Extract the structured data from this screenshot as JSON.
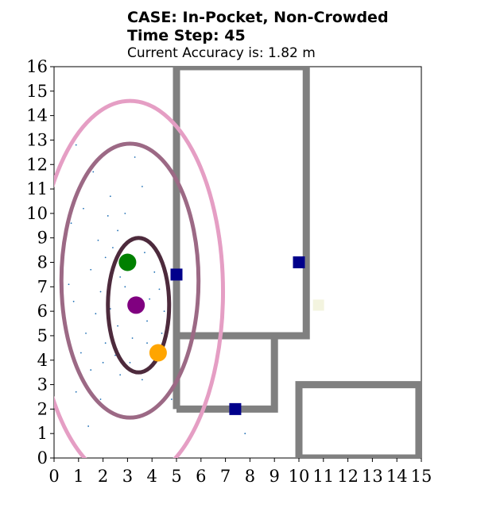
{
  "header": {
    "case_line": "CASE: In-Pocket, Non-Crowded",
    "time_line": "Time Step: 45",
    "accuracy_line": "Current Accuracy is: 1.82 m"
  },
  "chart_data": {
    "type": "scatter",
    "title": "CASE: In-Pocket, Non-Crowded",
    "xlabel": "",
    "ylabel": "",
    "xlim": [
      0,
      15
    ],
    "ylim": [
      0,
      16
    ],
    "xticks": [
      0,
      1,
      2,
      3,
      4,
      5,
      6,
      7,
      8,
      9,
      10,
      11,
      12,
      13,
      14,
      15
    ],
    "yticks": [
      0,
      1,
      2,
      3,
      4,
      5,
      6,
      7,
      8,
      9,
      10,
      11,
      12,
      13,
      14,
      15,
      16
    ],
    "grid": false,
    "legend": "none",
    "walls": {
      "color": "#808080",
      "polylines": [
        [
          [
            5.0,
            2.0
          ],
          [
            5.0,
            16.0
          ],
          [
            10.3,
            16.0
          ],
          [
            10.3,
            5.0
          ],
          [
            5.0,
            5.0
          ]
        ],
        [
          [
            5.0,
            5.0
          ],
          [
            9.0,
            5.0
          ],
          [
            9.0,
            2.0
          ],
          [
            5.0,
            2.0
          ]
        ],
        [
          [
            10.0,
            0.0
          ],
          [
            10.0,
            3.0
          ],
          [
            14.9,
            3.0
          ],
          [
            14.9,
            0.0
          ],
          [
            10.0,
            0.0
          ]
        ]
      ]
    },
    "ellipses": [
      {
        "cx": 3.1,
        "cy": 6.8,
        "rx": 3.8,
        "ry": 7.8,
        "color": "#e59ec4"
      },
      {
        "cx": 3.1,
        "cy": 7.25,
        "rx": 2.8,
        "ry": 5.6,
        "color": "#9c6985"
      },
      {
        "cx": 3.45,
        "cy": 6.25,
        "rx": 1.25,
        "ry": 2.75,
        "color": "#4d2a3c"
      }
    ],
    "anchors": {
      "color": "#00008b",
      "points": [
        [
          5.0,
          7.5
        ],
        [
          10.0,
          8.0
        ],
        [
          7.4,
          2.0
        ]
      ]
    },
    "markers": [
      {
        "x": 3.0,
        "y": 8.0,
        "color": "#008000"
      },
      {
        "x": 3.35,
        "y": 6.25,
        "color": "#800080"
      },
      {
        "x": 4.25,
        "y": 4.3,
        "color": "#ffa500"
      }
    ],
    "light_square": {
      "x": 10.8,
      "y": 6.25,
      "color": "#f3f4df"
    },
    "particles": {
      "color": "#1f6fb4",
      "points": [
        [
          0.9,
          12.8
        ],
        [
          1.6,
          11.7
        ],
        [
          1.2,
          10.2
        ],
        [
          2.3,
          10.7
        ],
        [
          0.7,
          9.6
        ],
        [
          2.6,
          9.3
        ],
        [
          1.8,
          8.9
        ],
        [
          2.1,
          8.2
        ],
        [
          0.4,
          8.3
        ],
        [
          1.5,
          7.7
        ],
        [
          2.7,
          7.4
        ],
        [
          2.9,
          7.0
        ],
        [
          1.9,
          6.8
        ],
        [
          0.8,
          6.4
        ],
        [
          2.3,
          6.1
        ],
        [
          3.9,
          6.5
        ],
        [
          4.3,
          6.9
        ],
        [
          4.5,
          6.0
        ],
        [
          3.8,
          5.6
        ],
        [
          2.6,
          5.4
        ],
        [
          1.3,
          5.1
        ],
        [
          2.1,
          4.7
        ],
        [
          2.5,
          4.2
        ],
        [
          3.1,
          3.9
        ],
        [
          1.5,
          3.6
        ],
        [
          2.7,
          3.4
        ],
        [
          3.6,
          3.2
        ],
        [
          0.9,
          2.7
        ],
        [
          1.9,
          2.4
        ],
        [
          4.6,
          2.6
        ],
        [
          4.8,
          2.4
        ],
        [
          3.3,
          12.3
        ],
        [
          4.0,
          14.4
        ],
        [
          2.2,
          9.9
        ],
        [
          2.9,
          10.0
        ],
        [
          3.6,
          11.1
        ],
        [
          3.2,
          4.9
        ],
        [
          1.1,
          4.3
        ],
        [
          2.0,
          3.9
        ],
        [
          3.8,
          4.7
        ],
        [
          4.4,
          5.1
        ],
        [
          0.6,
          7.1
        ],
        [
          1.7,
          5.9
        ],
        [
          4.1,
          7.6
        ],
        [
          2.4,
          8.6
        ],
        [
          3.7,
          8.4
        ],
        [
          1.4,
          1.3
        ],
        [
          7.8,
          1.0
        ]
      ]
    }
  }
}
